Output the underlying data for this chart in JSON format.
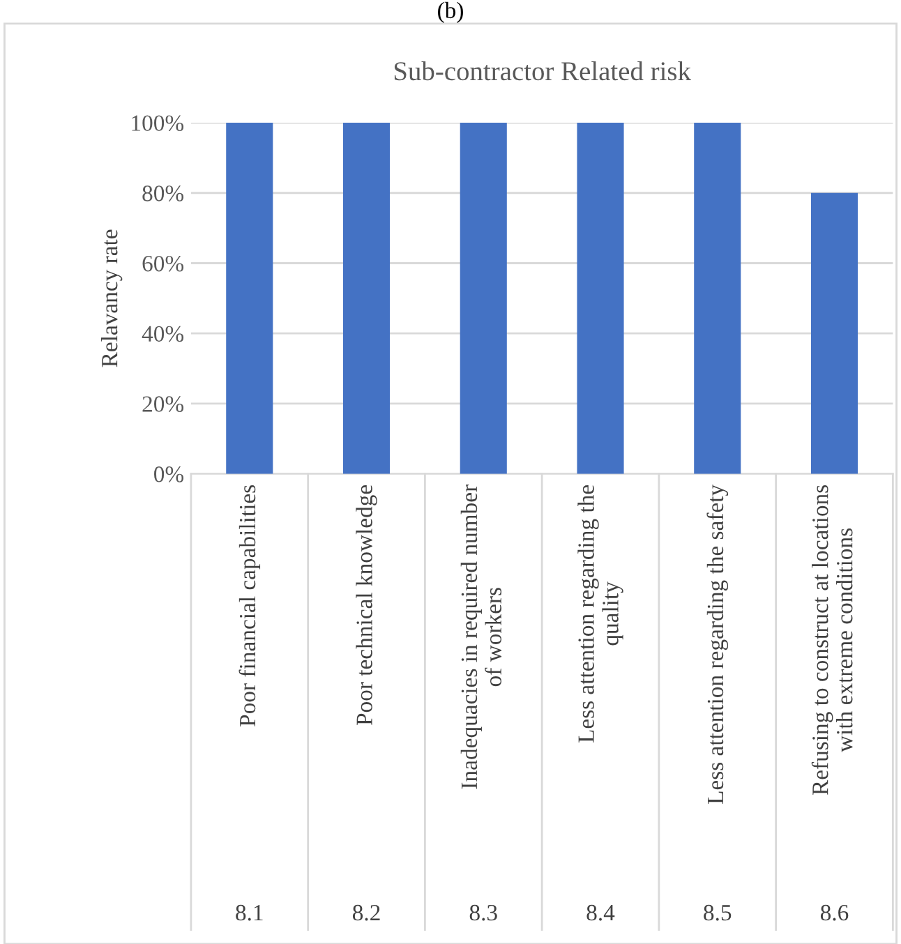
{
  "chart_data": {
    "type": "bar",
    "title": "Sub-contractor Related risk",
    "ylabel": "Relavancy rate",
    "categories": [
      "Poor financial capabilities",
      "Poor technical knowledge",
      "Inadequacies in required number\nof workers",
      "Less attention regarding the\nquality",
      "Less attention regarding the safety",
      "Refusing to construct at locations\nwith extreme conditions"
    ],
    "values": [
      100,
      100,
      100,
      100,
      100,
      80
    ],
    "color": "#4472c4",
    "ylim": [
      0,
      100
    ],
    "yticks": [
      {
        "value": 0,
        "label": "0%"
      },
      {
        "value": 20,
        "label": "20%"
      },
      {
        "value": 40,
        "label": "40%"
      },
      {
        "value": 60,
        "label": "60%"
      },
      {
        "value": 80,
        "label": "80%"
      },
      {
        "value": 100,
        "label": "100%"
      }
    ],
    "grid": "y",
    "annotations": [
      "(b)",
      "8.1",
      "8.2",
      "8.3",
      "8.4",
      "8.5",
      "8.6"
    ]
  }
}
